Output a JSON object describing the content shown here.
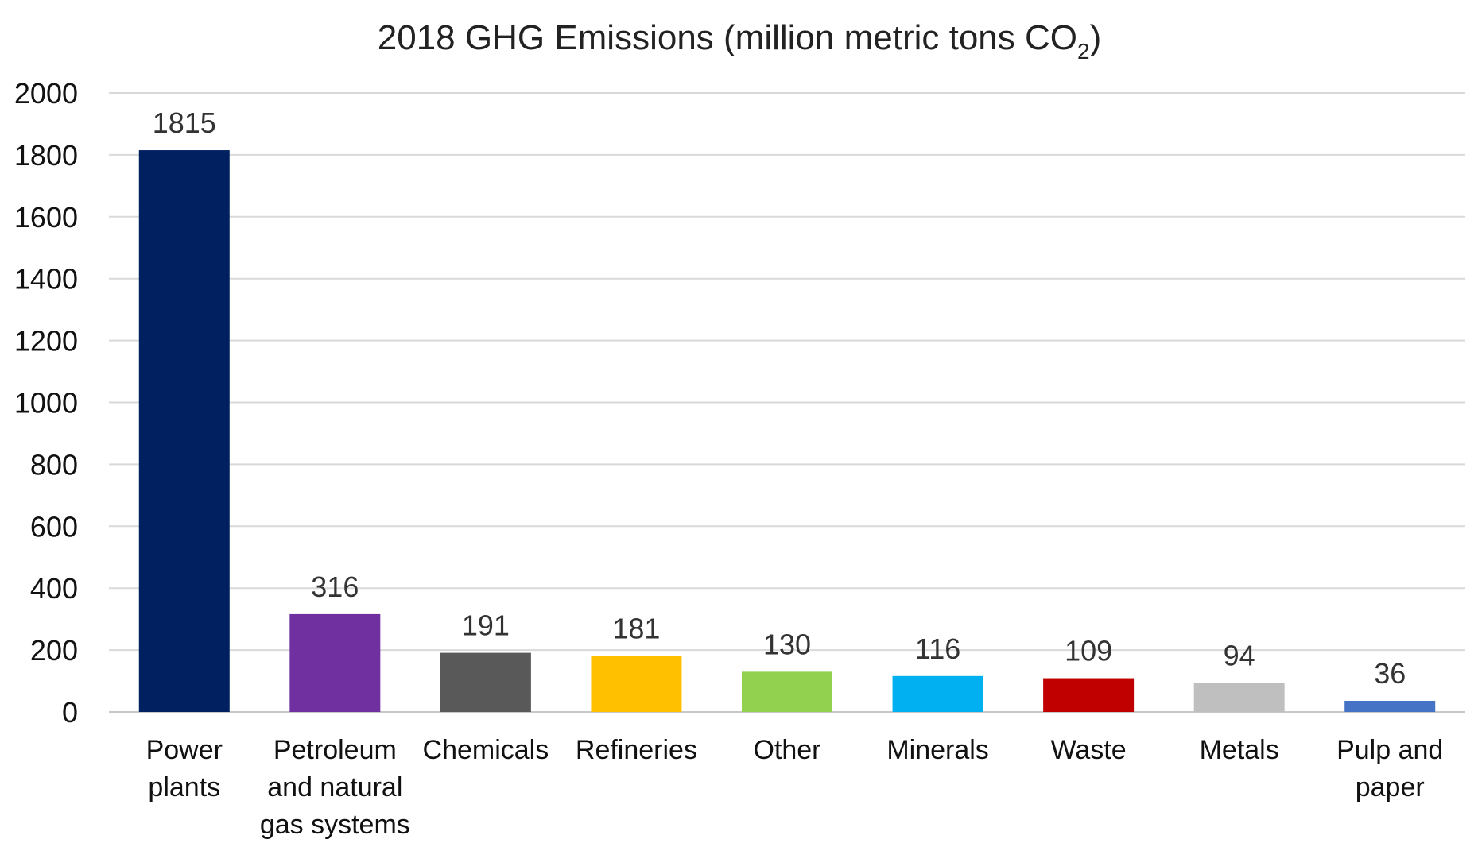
{
  "chart_data": {
    "type": "bar",
    "title": {
      "main": "2018 GHG Emissions (million metric tons CO",
      "subscript": "2",
      "suffix": ")"
    },
    "categories": [
      [
        "Power",
        "plants"
      ],
      [
        "Petroleum",
        "and natural",
        "gas systems"
      ],
      [
        "Chemicals"
      ],
      [
        "Refineries"
      ],
      [
        "Other"
      ],
      [
        "Minerals"
      ],
      [
        "Waste"
      ],
      [
        "Metals"
      ],
      [
        "Pulp and",
        "paper"
      ]
    ],
    "values": [
      1815,
      316,
      191,
      181,
      130,
      116,
      109,
      94,
      36
    ],
    "data_labels": [
      "1815",
      "316",
      "191",
      "181",
      "130",
      "116",
      "109",
      "94",
      "36"
    ],
    "colors": [
      "#002060",
      "#7030A0",
      "#595959",
      "#FFC000",
      "#92D050",
      "#00B0F0",
      "#C00000",
      "#BFBFBF",
      "#4472C4"
    ],
    "ylim": [
      0,
      2000
    ],
    "yticks": [
      0,
      200,
      400,
      600,
      800,
      1000,
      1200,
      1400,
      1600,
      1800,
      2000
    ],
    "grid": true,
    "legend": "none"
  }
}
